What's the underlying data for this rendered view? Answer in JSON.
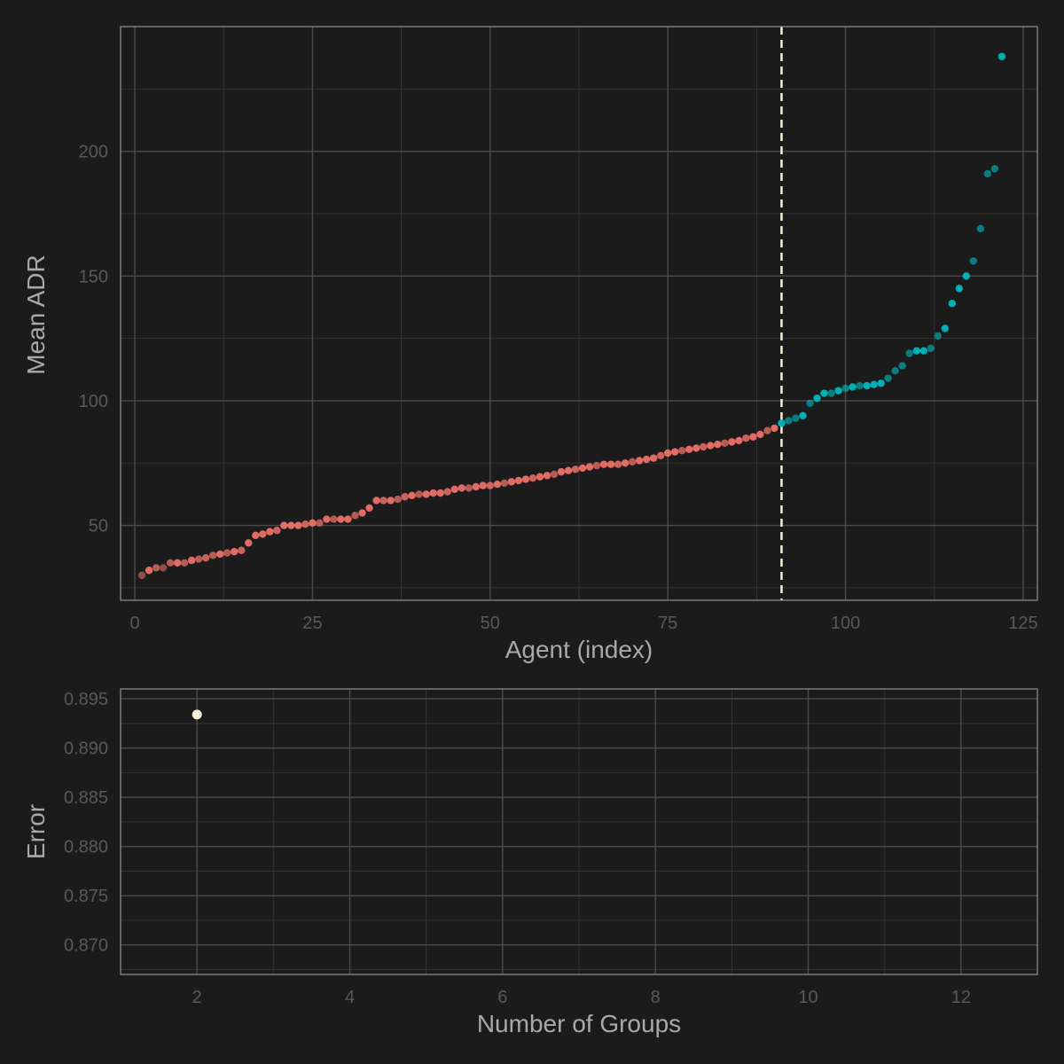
{
  "colors": {
    "background": "#1b1b1b",
    "group_low": "#f8766d",
    "group_high": "#00bfc4",
    "error_point": "#f5f0dc",
    "cutoff_line": "#f5f0dc"
  },
  "chart_data": [
    {
      "type": "scatter",
      "title": "",
      "xlabel": "Agent (index)",
      "ylabel": "Mean ADR",
      "xlim": [
        -2,
        127
      ],
      "ylim": [
        20,
        250
      ],
      "x_ticks": [
        0,
        25,
        50,
        75,
        100,
        125
      ],
      "x_tick_labels": [
        "0",
        "25",
        "50",
        "75",
        "100",
        "125"
      ],
      "y_ticks": [
        50,
        100,
        150,
        200
      ],
      "y_tick_labels": [
        "50",
        "100",
        "150",
        "200"
      ],
      "grid": true,
      "legend": "none",
      "cutoff_x": 91,
      "series": [
        {
          "color": "#f8766d",
          "x": [
            1,
            2,
            3,
            4,
            5,
            6,
            7,
            8,
            9,
            10,
            11,
            12,
            13,
            14,
            15,
            16,
            17,
            18,
            19,
            20,
            21,
            22,
            23,
            24,
            25,
            26,
            27,
            28,
            29,
            30,
            31,
            32,
            33,
            34,
            35,
            36,
            37,
            38,
            39,
            40,
            41,
            42,
            43,
            44,
            45,
            46,
            47,
            48,
            49,
            50,
            51,
            52,
            53,
            54,
            55,
            56,
            57,
            58,
            59,
            60,
            61,
            62,
            63,
            64,
            65,
            66,
            67,
            68,
            69,
            70,
            71,
            72,
            73,
            74,
            75,
            76,
            77,
            78,
            79,
            80,
            81,
            82,
            83,
            84,
            85,
            86,
            87,
            88,
            89,
            90
          ],
          "y": [
            30,
            32,
            33,
            33,
            35,
            35,
            35,
            36,
            36.5,
            37,
            38,
            38.5,
            39,
            39.5,
            40,
            43,
            46,
            46.5,
            47.5,
            48,
            50,
            50,
            50,
            50.5,
            51,
            51,
            52.5,
            52.5,
            52.5,
            52.5,
            54,
            55,
            57,
            60,
            60,
            60,
            60.5,
            61.5,
            62,
            62.5,
            62.5,
            63,
            63,
            63.5,
            64.5,
            65,
            65,
            65.5,
            66,
            66,
            66.5,
            67,
            67.5,
            68,
            68.5,
            69,
            69.5,
            70,
            70.5,
            71.5,
            72,
            72.5,
            73,
            73.5,
            74,
            74.5,
            74.5,
            74.5,
            75,
            75.5,
            76,
            76.5,
            77,
            78,
            79,
            79.5,
            80,
            80.5,
            81,
            81.5,
            82,
            82.5,
            83,
            83.5,
            84,
            85,
            85.5,
            86.5,
            88,
            89
          ],
          "opacity": [
            0.55,
            0.9,
            0.7,
            0.55,
            0.7,
            0.9,
            0.7,
            0.9,
            0.7,
            0.8,
            0.7,
            0.9,
            0.7,
            0.9,
            0.8,
            0.9,
            0.9,
            0.9,
            0.9,
            0.8,
            0.9,
            0.9,
            0.9,
            0.8,
            0.9,
            0.7,
            0.9,
            0.7,
            0.9,
            0.9,
            0.7,
            0.9,
            0.9,
            0.9,
            0.8,
            0.9,
            0.7,
            0.8,
            0.9,
            0.7,
            0.9,
            0.9,
            0.9,
            0.8,
            0.9,
            0.9,
            0.7,
            0.9,
            0.9,
            0.8,
            0.9,
            0.7,
            0.9,
            0.9,
            0.9,
            0.8,
            0.9,
            0.9,
            0.7,
            0.9,
            0.9,
            0.8,
            0.9,
            0.9,
            0.7,
            0.9,
            0.9,
            0.8,
            0.9,
            0.7,
            0.9,
            0.9,
            0.9,
            0.8,
            0.9,
            0.9,
            0.7,
            0.9,
            0.9,
            0.8,
            0.9,
            0.9,
            0.7,
            0.9,
            0.9,
            0.8,
            0.9,
            0.9,
            0.7,
            0.9
          ]
        },
        {
          "color": "#00bfc4",
          "x": [
            91,
            92,
            93,
            94,
            95,
            96,
            97,
            98,
            99,
            100,
            101,
            102,
            103,
            104,
            105,
            106,
            107,
            108,
            109,
            110,
            111,
            112,
            113,
            114,
            115,
            116,
            117,
            118,
            119,
            120,
            121,
            122
          ],
          "y": [
            91,
            92,
            93,
            94,
            99,
            101,
            103,
            103,
            104,
            105,
            105.5,
            106,
            106,
            106.5,
            107,
            109,
            112,
            114,
            119,
            120,
            120,
            121,
            126,
            129,
            139,
            145,
            150,
            156,
            169,
            191,
            193,
            238
          ],
          "opacity": [
            0.9,
            0.6,
            0.6,
            0.9,
            0.6,
            0.9,
            0.9,
            0.6,
            0.9,
            0.6,
            0.9,
            0.6,
            0.9,
            0.9,
            0.9,
            0.6,
            0.6,
            0.6,
            0.6,
            0.9,
            0.9,
            0.6,
            0.6,
            0.9,
            0.9,
            0.9,
            0.9,
            0.6,
            0.6,
            0.6,
            0.6,
            0.9
          ]
        }
      ]
    },
    {
      "type": "scatter",
      "title": "",
      "xlabel": "Number of Groups",
      "ylabel": "Error",
      "xlim": [
        1.0,
        13.0
      ],
      "ylim": [
        0.867,
        0.896
      ],
      "x_ticks": [
        2,
        4,
        6,
        8,
        10,
        12
      ],
      "x_tick_labels": [
        "2",
        "4",
        "6",
        "8",
        "10",
        "12"
      ],
      "y_ticks": [
        0.87,
        0.875,
        0.88,
        0.885,
        0.89,
        0.895
      ],
      "y_tick_labels": [
        "0.870",
        "0.875",
        "0.880",
        "0.885",
        "0.890",
        "0.895"
      ],
      "grid": true,
      "legend": "none",
      "series": [
        {
          "color": "#f5f0dc",
          "x": [
            2
          ],
          "y": [
            0.8934
          ]
        }
      ]
    }
  ]
}
